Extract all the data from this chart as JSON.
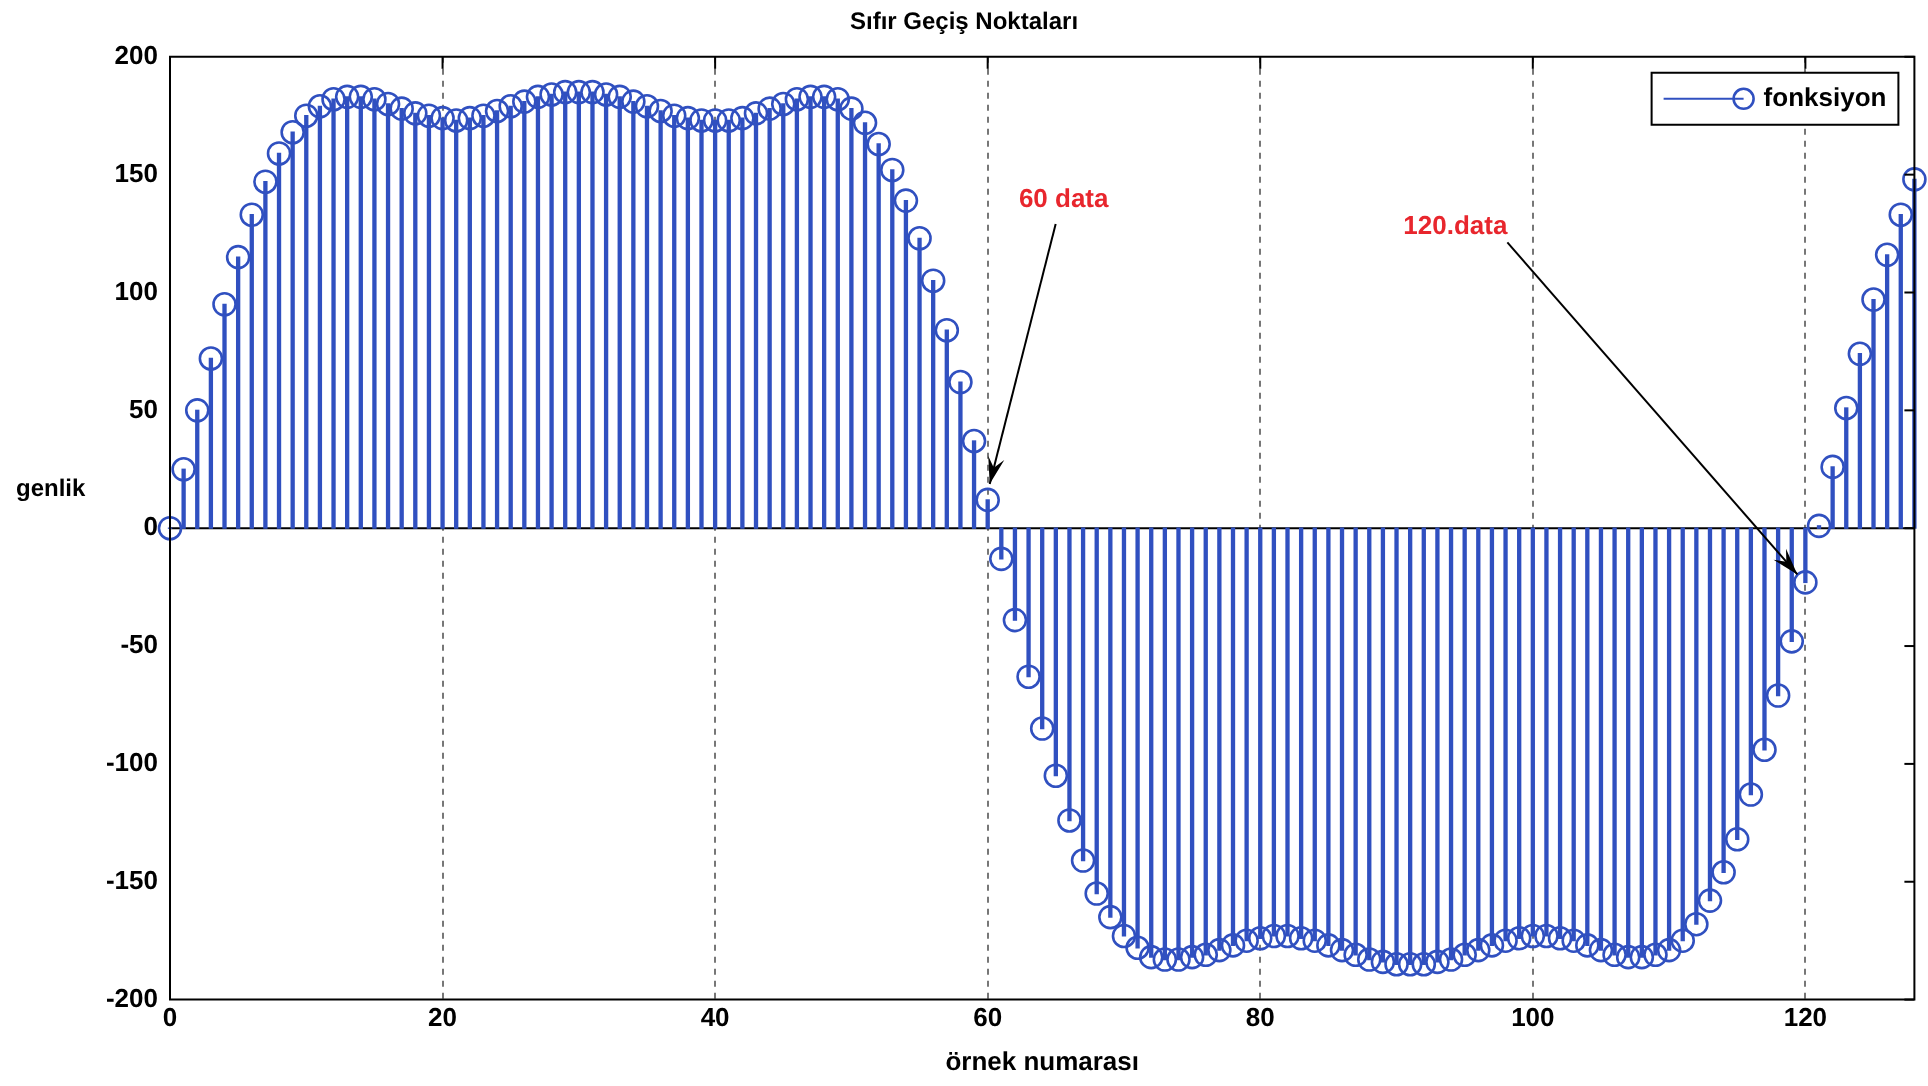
{
  "chart_data": {
    "type": "lollipop",
    "title": "Sıfır Geçiş Noktaları",
    "xlabel": "örnek numarası",
    "ylabel": "genlik",
    "series": [
      {
        "name": "fonksiyon",
        "color": "#3050c0",
        "x": [
          0,
          1,
          2,
          3,
          4,
          5,
          6,
          7,
          8,
          9,
          10,
          11,
          12,
          13,
          14,
          15,
          16,
          17,
          18,
          19,
          20,
          21,
          22,
          23,
          24,
          25,
          26,
          27,
          28,
          29,
          30,
          31,
          32,
          33,
          34,
          35,
          36,
          37,
          38,
          39,
          40,
          41,
          42,
          43,
          44,
          45,
          46,
          47,
          48,
          49,
          50,
          51,
          52,
          53,
          54,
          55,
          56,
          57,
          58,
          59,
          60,
          61,
          62,
          63,
          64,
          65,
          66,
          67,
          68,
          69,
          70,
          71,
          72,
          73,
          74,
          75,
          76,
          77,
          78,
          79,
          80,
          81,
          82,
          83,
          84,
          85,
          86,
          87,
          88,
          89,
          90,
          91,
          92,
          93,
          94,
          95,
          96,
          97,
          98,
          99,
          100,
          101,
          102,
          103,
          104,
          105,
          106,
          107,
          108,
          109,
          110,
          111,
          112,
          113,
          114,
          115,
          116,
          117,
          118,
          119,
          120,
          121,
          122,
          123,
          124,
          125,
          126,
          127,
          128
        ],
        "values": [
          0,
          25,
          50,
          72,
          95,
          115,
          133,
          147,
          159,
          168,
          175,
          179,
          182,
          183,
          183,
          182,
          180,
          178,
          176,
          175,
          174,
          173,
          174,
          175,
          177,
          179,
          181,
          183,
          184,
          185,
          185,
          185,
          184,
          183,
          181,
          179,
          177,
          175,
          174,
          173,
          173,
          173,
          174,
          176,
          178,
          180,
          182,
          183,
          183,
          182,
          178,
          172,
          163,
          152,
          139,
          123,
          105,
          84,
          62,
          37,
          12,
          -13,
          -39,
          -63,
          -85,
          -105,
          -124,
          -141,
          -155,
          -165,
          -173,
          -178,
          -182,
          -183,
          -183,
          -182,
          -181,
          -179,
          -177,
          -175,
          -174,
          -173,
          -173,
          -174,
          -175,
          -177,
          -179,
          -181,
          -183,
          -184,
          -185,
          -185,
          -185,
          -184,
          -183,
          -181,
          -179,
          -177,
          -175,
          -174,
          -173,
          -173,
          -174,
          -175,
          -177,
          -179,
          -181,
          -182,
          -182,
          -181,
          -179,
          -175,
          -168,
          -158,
          -146,
          -132,
          -113,
          -94,
          -71,
          -48,
          -23,
          1,
          26,
          51,
          74,
          97,
          116,
          133,
          148
        ]
      }
    ],
    "xlim": [
      0,
      128
    ],
    "xticks": [
      0,
      20,
      40,
      60,
      80,
      100,
      120
    ],
    "ylim": [
      -200,
      200
    ],
    "yticks": [
      -200,
      -150,
      -100,
      -50,
      0,
      50,
      100,
      150,
      200
    ],
    "grid": "x",
    "legend": "top right",
    "marker": "circle",
    "annotations": [
      {
        "text": "60 data",
        "x": 60,
        "y": 12
      },
      {
        "text": "120.data",
        "x": 120,
        "y": -23
      }
    ]
  }
}
